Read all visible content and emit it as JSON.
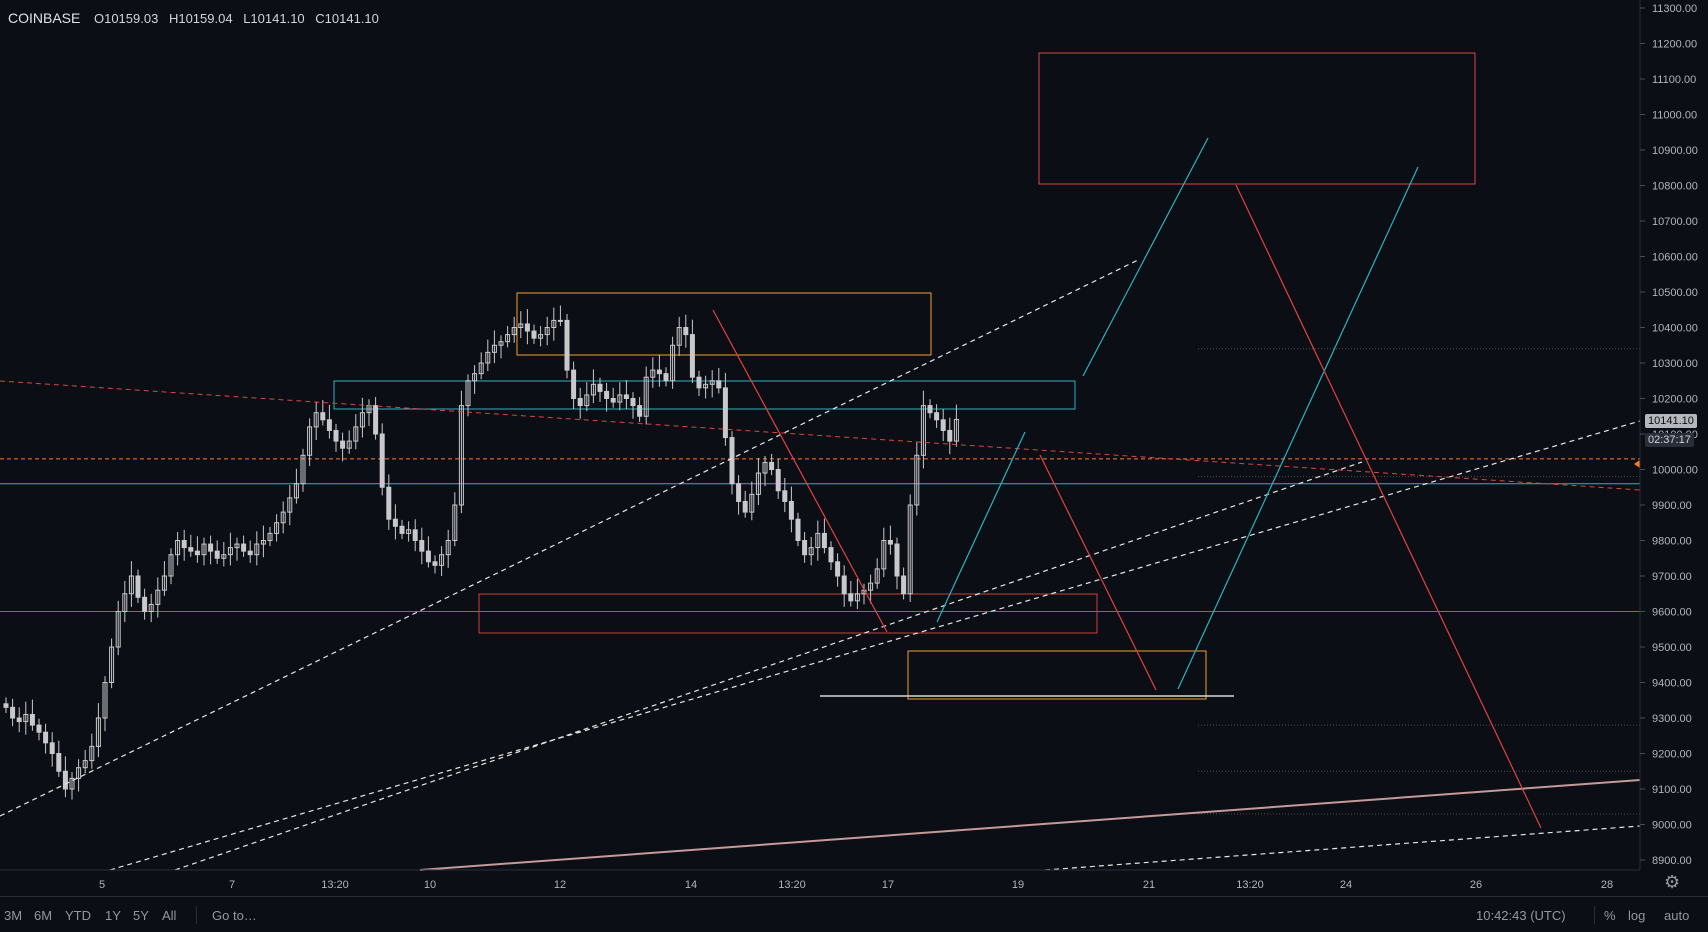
{
  "header": {
    "symbol": "COINBASE",
    "open": "O10159.03",
    "high": "H10159.04",
    "low": "L10141.10",
    "close": "C10141.10"
  },
  "price_tags": {
    "last_price": "10141.10",
    "countdown": "02:37:17"
  },
  "bottom_bar": {
    "ranges": [
      "3M",
      "6M",
      "YTD",
      "1Y",
      "5Y",
      "All"
    ],
    "goto": "Go to…",
    "clock": "10:42:43 (UTC)",
    "percent": "%",
    "log": "log",
    "auto": "auto"
  },
  "icons": {
    "settings": "gear-icon"
  },
  "colors": {
    "background": "#0c0e15",
    "candle": "#c8c9cd",
    "teal": "#2bb3c0",
    "red": "#e0433f",
    "orange": "#f0a030",
    "dashed_white": "#e6e6e6",
    "support_pink": "#c49a9a",
    "price_line": "#ff7b2a"
  },
  "chart_data": {
    "type": "candlestick",
    "y_ticks": [
      8900,
      9000,
      9100,
      9200,
      9300,
      9400,
      9500,
      9600,
      9700,
      9800,
      9900,
      10000,
      10100,
      10200,
      10300,
      10400,
      10500,
      10600,
      10700,
      10800,
      10900,
      11000,
      11100,
      11200,
      11300
    ],
    "y_tick_labels": [
      "8900.00",
      "9000.00",
      "9100.00",
      "9200.00",
      "9300.00",
      "9400.00",
      "9500.00",
      "9600.00",
      "9700.00",
      "9800.00",
      "9900.00",
      "10000.00",
      "10100.00",
      "10200.00",
      "10300.00",
      "10400.00",
      "10500.00",
      "10600.00",
      "10700.00",
      "10800.00",
      "10900.00",
      "11000.00",
      "11100.00",
      "11200.00",
      "11300.00"
    ],
    "ylim": [
      8900,
      11320
    ],
    "x_ticks": [
      "5",
      "7",
      "13:20",
      "10",
      "12",
      "14",
      "13:20",
      "17",
      "19",
      "21",
      "13:20",
      "24",
      "26",
      "28"
    ],
    "last_price": 10141.1,
    "horizontal_levels": {
      "orange_dashed": 10030,
      "teal": 9960,
      "red": 9600
    },
    "close_series": [
      9330,
      9300,
      9290,
      9310,
      9280,
      9260,
      9230,
      9200,
      9150,
      9100,
      9130,
      9160,
      9180,
      9220,
      9300,
      9400,
      9500,
      9600,
      9650,
      9700,
      9640,
      9600,
      9620,
      9660,
      9700,
      9760,
      9800,
      9780,
      9770,
      9760,
      9790,
      9770,
      9750,
      9760,
      9780,
      9790,
      9770,
      9760,
      9790,
      9800,
      9820,
      9850,
      9880,
      9920,
      9960,
      10040,
      10120,
      10160,
      10140,
      10110,
      10080,
      10060,
      10080,
      10120,
      10160,
      10180,
      10100,
      9950,
      9860,
      9840,
      9820,
      9830,
      9800,
      9770,
      9740,
      9730,
      9760,
      9800,
      9900,
      10180,
      10250,
      10270,
      10300,
      10330,
      10350,
      10360,
      10380,
      10400,
      10410,
      10390,
      10370,
      10380,
      10400,
      10420,
      10420,
      10280,
      10200,
      10180,
      10210,
      10240,
      10220,
      10200,
      10190,
      10210,
      10200,
      10180,
      10150,
      10260,
      10280,
      10270,
      10250,
      10350,
      10400,
      10380,
      10260,
      10230,
      10240,
      10250,
      10230,
      10090,
      9960,
      9910,
      9880,
      9930,
      9990,
      10020,
      10000,
      9940,
      9910,
      9860,
      9800,
      9760,
      9780,
      9820,
      9780,
      9740,
      9700,
      9650,
      9630,
      9650,
      9660,
      9680,
      9720,
      9800,
      9790,
      9700,
      9650,
      9900,
      10040,
      10180,
      10160,
      10140,
      10110,
      10080,
      10141
    ],
    "drawings": {
      "orange_boxes": [
        {
          "x_from": "12",
          "x_to": "16",
          "y_from": 10330,
          "y_to": 10500
        },
        {
          "x_from": "17",
          "x_to": "21",
          "y_from": 9370,
          "y_to": 9500
        }
      ],
      "red_boxes": [
        {
          "x_from": "20",
          "x_to": "26",
          "y_from": 10810,
          "y_to": 11170
        },
        {
          "x_from": "11",
          "x_to": "20",
          "y_from": 9560,
          "y_to": 9660
        }
      ],
      "teal_boxes": [
        {
          "x_from": "9",
          "x_to": "20",
          "y_from": 10180,
          "y_to": 10260
        }
      ]
    }
  }
}
